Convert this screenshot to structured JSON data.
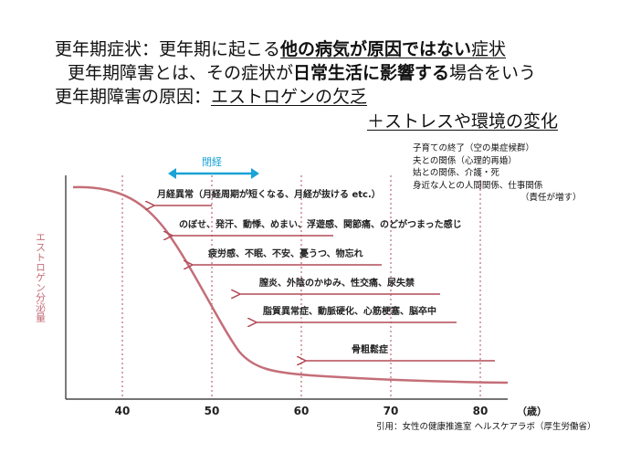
{
  "heading": {
    "line1_a": "更年期症状：更年期に起こる",
    "line1_b": "他の病気が原因ではない",
    "line1_c": "症状",
    "line2_a": "更年期障害とは、その症状が",
    "line2_b": "日常生活に影響する",
    "line2_c": "場合をいう",
    "line3_a": "更年期障害の原因：",
    "line3_b": "エストロゲンの欠乏",
    "line4": "＋ストレスや環境の変化"
  },
  "causes": [
    "子育ての終了（空の巣症候群）",
    "夫との関係（心理的再婚）",
    "姑との関係、介護・死",
    "身近な人との人間関係、仕事関係",
    "（責任が増す）"
  ],
  "chart": {
    "ylabel": "エストロゲン分泌量",
    "menopause_label": "閉経",
    "unit": "（歳）",
    "ticks": [
      "40",
      "50",
      "60",
      "70",
      "80"
    ],
    "symptoms": [
      "月経異常（月経周期が短くなる、月経が抜ける etc.）",
      "のぼせ、発汗、動悸、めまい、浮遊感、関節痛、のどがつまった感じ",
      "疲労感、不眠、不安、憂うつ、物忘れ",
      "膣炎、外陰のかゆみ、性交痛、尿失禁",
      "脂質異常症、動脈硬化、心筋梗塞、脳卒中",
      "骨粗鬆症"
    ],
    "colors": {
      "curve": "#c46e78",
      "arrow": "#b24b57",
      "accent": "#1aa3d6"
    }
  },
  "citation": "引用：女性の健康推進室 ヘルスケアラボ（厚生労働省）"
}
